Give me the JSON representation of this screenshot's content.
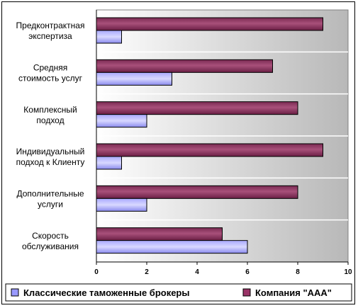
{
  "chart_data": {
    "type": "bar",
    "orientation": "horizontal",
    "categories": [
      [
        "Предконтрактная",
        "экспертиза"
      ],
      [
        "Средняя",
        "стоимость услуг"
      ],
      [
        "Комплексный",
        "подход"
      ],
      [
        "Индивидуальный",
        "подход к Клиенту"
      ],
      [
        "Дополнительные",
        "услуги"
      ],
      [
        "Скорость",
        "обслуживания"
      ]
    ],
    "series": [
      {
        "name": "Классические таможенные брокеры",
        "values": [
          1,
          3,
          2,
          1,
          2,
          6
        ],
        "color": "#9999ff"
      },
      {
        "name": "Компания \"ААА\"",
        "values": [
          9,
          7,
          8,
          9,
          8,
          5
        ],
        "color": "#993366"
      }
    ],
    "xlim": [
      0,
      10
    ],
    "xticks": [
      "0",
      "2",
      "4",
      "6",
      "8",
      "10"
    ],
    "grid": true,
    "legend": "bottom"
  }
}
